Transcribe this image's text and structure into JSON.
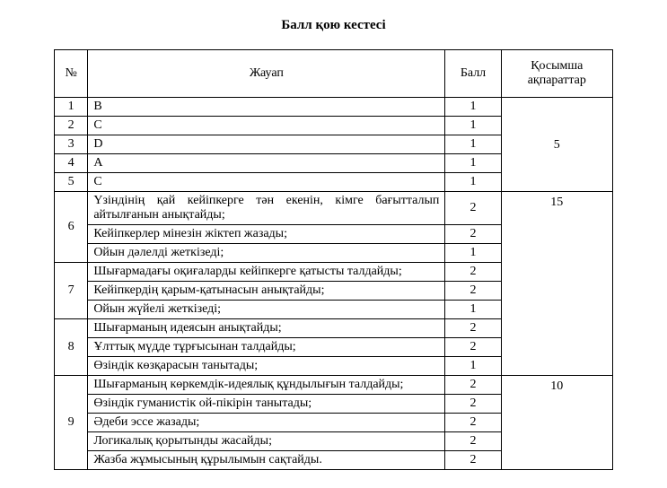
{
  "title": "Балл қою кестесі",
  "headers": {
    "num": "№",
    "answer": "Жауап",
    "ball": "Балл",
    "extra": "Қосымша ақпараттар"
  },
  "rows": {
    "r1": {
      "num": "1",
      "ans": "В",
      "ball": "1"
    },
    "r2": {
      "num": "2",
      "ans": "С",
      "ball": "1"
    },
    "r3": {
      "num": "3",
      "ans": "D",
      "ball": "1"
    },
    "r4": {
      "num": "4",
      "ans": "A",
      "ball": "1"
    },
    "r5": {
      "num": "5",
      "ans": "С",
      "ball": "1"
    },
    "r6a": {
      "num": "6",
      "ans": "Үзіндінің қай кейіпкерге тән екенін, кімге бағытталып айтылғанын анықтайды;",
      "ball": "2"
    },
    "r6b": {
      "ans": "Кейіпкерлер мінезін жіктеп жазады;",
      "ball": "2"
    },
    "r6c": {
      "ans": "Ойын дәлелді жеткізеді;",
      "ball": "1"
    },
    "r7a": {
      "num": "7",
      "ans": "Шығармадағы оқиғаларды кейіпкерге қатысты талдайды;",
      "ball": "2"
    },
    "r7b": {
      "ans": "Кейіпкердің қарым-қатынасын анықтайды;",
      "ball": "2"
    },
    "r7c": {
      "ans": "Ойын жүйелі жеткізеді;",
      "ball": "1"
    },
    "r8a": {
      "num": "8",
      "ans": "Шығарманың идеясын анықтайды;",
      "ball": "2"
    },
    "r8b": {
      "ans": "Ұлттық мүдде тұрғысынан талдайды;",
      "ball": "2"
    },
    "r8c": {
      "ans": "Өзіндік көзқарасын танытады;",
      "ball": "1"
    },
    "r9a": {
      "num": "9",
      "ans": "Шығарманың көркемдік-идеялық құндылығын талдайды;",
      "ball": "2"
    },
    "r9b": {
      "ans": "Өзіндік гуманистік ой-пікірін танытады;",
      "ball": "2"
    },
    "r9c": {
      "ans": "Әдеби эссе жазады;",
      "ball": "2"
    },
    "r9d": {
      "ans": "Логикалық қорытынды жасайды;",
      "ball": "2"
    },
    "r9e": {
      "ans": "Жазба жұмысының құрылымын сақтайды.",
      "ball": "2"
    }
  },
  "extras": {
    "g1": "5",
    "g2": "15",
    "g3": "10"
  }
}
